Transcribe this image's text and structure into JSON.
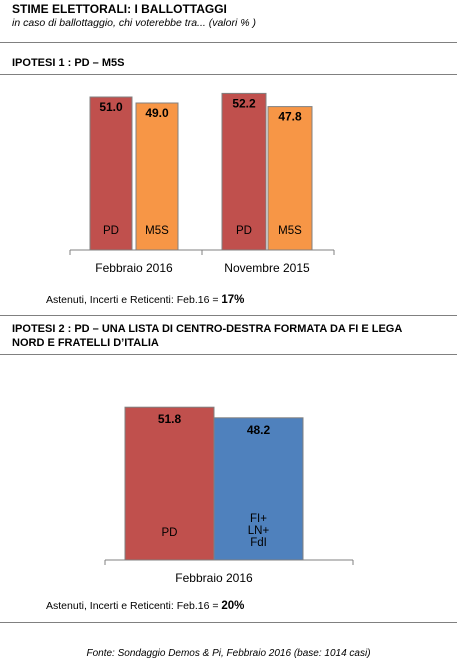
{
  "header": {
    "title": "STIME ELETTORALI:  I BALLOTTAGGI",
    "subtitle": "in caso di ballottaggio, chi voterebbe tra... (valori % )"
  },
  "section1": {
    "title": "IPOTESI 1 : PD – M5S",
    "note_prefix": "Astenuti, Incerti e Reticenti: Feb.16 = ",
    "note_value": "17%"
  },
  "section2": {
    "title_line1": "IPOTESI 2 : PD – UNA LISTA  DI CENTRO-DESTRA FORMATA  DA FI E LEGA",
    "title_line2": "NORD E FRATELLI D’ITALIA",
    "note_prefix": "Astenuti, Incerti e Reticenti: Feb.16 = ",
    "note_value": "20%"
  },
  "footer": "Fonte: Sondaggio Demos & Pi, Febbraio 2016 (base: 1014 casi)",
  "colors": {
    "pd": "#c0504d",
    "m5s": "#f79646",
    "cdx": "#4f81bd",
    "border": "#808080"
  },
  "chart_data": [
    {
      "type": "bar",
      "categories": [
        "Febbraio 2016",
        "Novembre 2015"
      ],
      "series": [
        {
          "name": "PD",
          "values": [
            51.0,
            52.2
          ]
        },
        {
          "name": "M5S",
          "values": [
            49.0,
            47.8
          ]
        }
      ],
      "value_labels": [
        [
          "51.0",
          "52.2"
        ],
        [
          "49.0",
          "47.8"
        ]
      ],
      "series_labels": [
        "PD",
        "M5S"
      ],
      "ylim": [
        0,
        60
      ]
    },
    {
      "type": "bar",
      "categories": [
        "Febbraio 2016"
      ],
      "series": [
        {
          "name": "PD",
          "values": [
            51.8
          ]
        },
        {
          "name": "FI+\nLN+\nFdI",
          "values": [
            48.2
          ]
        }
      ],
      "value_labels": [
        [
          "51.8"
        ],
        [
          "48.2"
        ]
      ],
      "series_labels": [
        "PD",
        "FI+\nLN+\nFdI"
      ],
      "ylim": [
        0,
        60
      ]
    }
  ]
}
